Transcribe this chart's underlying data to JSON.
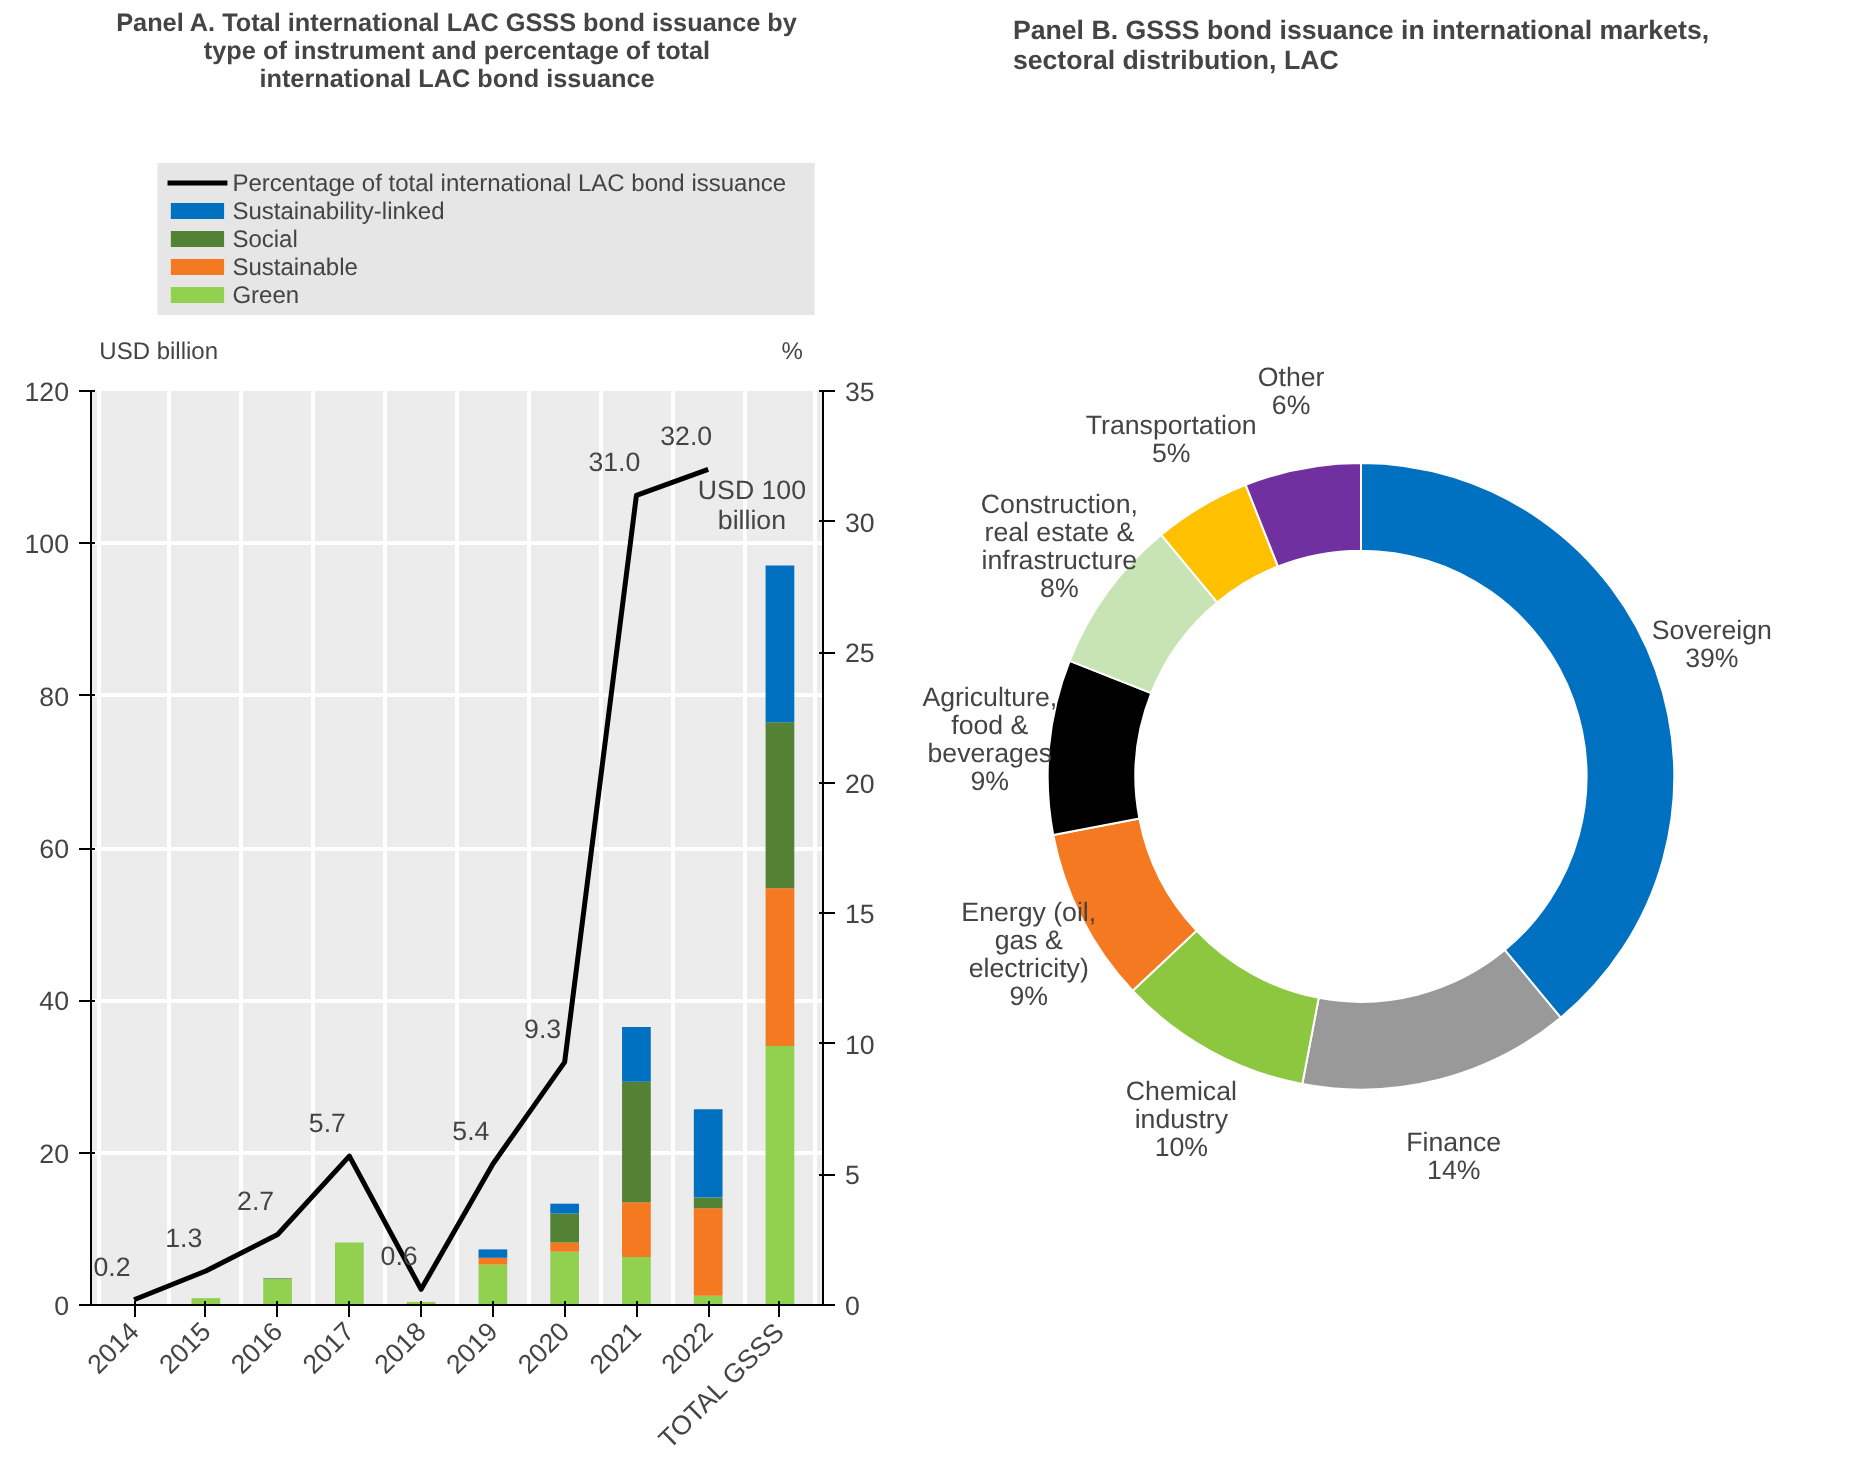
{
  "chart_data": [
    {
      "type": "bar",
      "title": "Panel A. Total international LAC GSSS bond issuance by type of instrument and percentage of total international LAC bond issuance",
      "categories": [
        "2014",
        "2015",
        "2016",
        "2017",
        "2018",
        "2019",
        "2020",
        "2021",
        "2022",
        "TOTAL GSSS"
      ],
      "stacked": true,
      "ylabel": "USD billion",
      "y2label": "%",
      "ylim": [
        0,
        120
      ],
      "yticks": [
        0,
        20,
        40,
        60,
        80,
        100,
        120
      ],
      "y2lim": [
        0,
        35
      ],
      "y2ticks": [
        0,
        5,
        10,
        15,
        20,
        25,
        30,
        35
      ],
      "grid": true,
      "legend": "top",
      "series": [
        {
          "name": "Green",
          "color": "#92d050",
          "values": [
            0,
            0.9,
            3.4,
            8.2,
            0.4,
            5.3,
            7.0,
            6.3,
            1.2,
            34.0
          ]
        },
        {
          "name": "Sustainable",
          "color": "#f47920",
          "values": [
            0,
            0,
            0,
            0,
            0,
            0.9,
            1.2,
            7.2,
            11.5,
            20.7
          ]
        },
        {
          "name": "Social",
          "color": "#548235",
          "values": [
            0,
            0,
            0.1,
            0,
            0,
            0,
            3.8,
            15.8,
            1.4,
            21.8
          ]
        },
        {
          "name": "Sustainability-linked",
          "color": "#0070c0",
          "values": [
            0,
            0,
            0,
            0,
            0,
            1.1,
            1.3,
            7.2,
            11.6,
            20.6
          ]
        },
        {
          "name": "Percentage of total international LAC bond issuance",
          "type": "line",
          "axis": "y2",
          "color": "#000000",
          "values": [
            0.2,
            1.3,
            2.7,
            5.7,
            0.6,
            5.4,
            9.3,
            31.0,
            32.0,
            null
          ],
          "value_labels": [
            "0.2",
            "1.3",
            "2.7",
            "5.7",
            "0.6",
            "5.4",
            "9.3",
            "31.0",
            "32.0",
            null
          ]
        }
      ],
      "annotations": [
        "USD 100 billion"
      ]
    },
    {
      "type": "donut",
      "title": "Panel B. GSSS bond issuance in international markets, sectoral distribution, LAC",
      "categories": [
        "Sovereign",
        "Finance",
        "Chemical industry",
        "Energy (oil, gas & electricity)",
        "Agriculture, food & beverages",
        "Construction, real estate & infrastructure",
        "Transportation",
        "Other"
      ],
      "values": [
        39,
        14,
        10,
        9,
        9,
        8,
        5,
        6
      ],
      "colors": [
        "#0070c0",
        "#999999",
        "#8dc63f",
        "#f47920",
        "#000000",
        "#c9e4b4",
        "#ffc000",
        "#7030a0"
      ],
      "value_labels": [
        "39%",
        "14%",
        "10%",
        "9%",
        "9%",
        "8%",
        "5%",
        "6%"
      ]
    }
  ]
}
